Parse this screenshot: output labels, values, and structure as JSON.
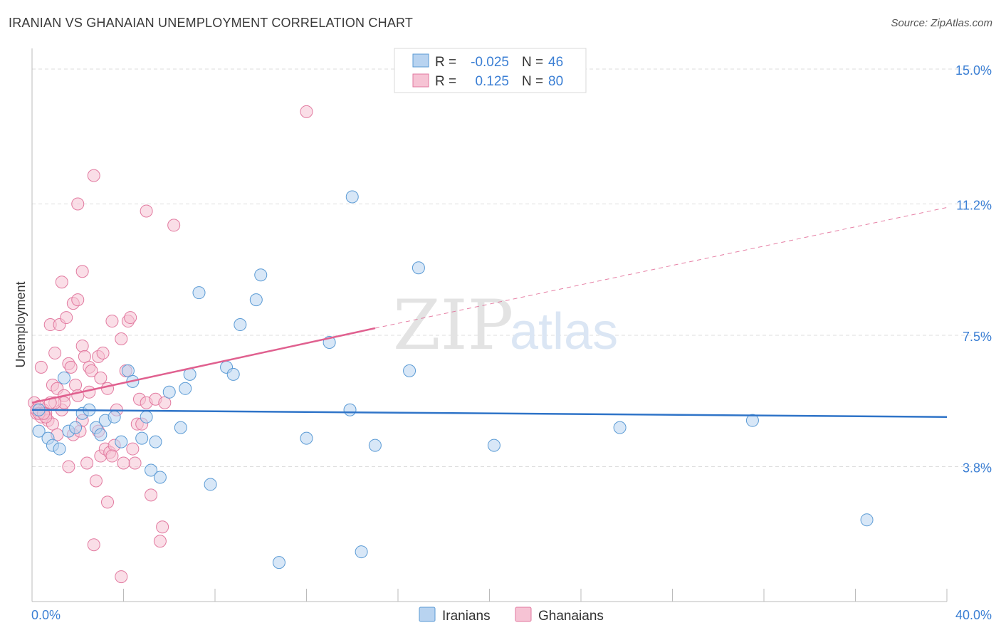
{
  "title": "IRANIAN VS GHANAIAN UNEMPLOYMENT CORRELATION CHART",
  "source": "Source: ZipAtlas.com",
  "watermark": {
    "zip": "ZIP",
    "atlas": "atlas"
  },
  "colors": {
    "blue": "#5b9bd5",
    "blue_fill": "#b8d3f0",
    "blue_line": "#2f74c8",
    "pink": "#e27aa0",
    "pink_fill": "#f6c3d4",
    "pink_line": "#e0608f",
    "tick_text": "#3b7fd4",
    "grid": "#dddddd"
  },
  "stats_box": {
    "rows": [
      {
        "r_label": "R =",
        "r_value": "-0.025",
        "n_label": "N =",
        "n_value": "46"
      },
      {
        "r_label": "R =",
        "r_value": "0.125",
        "n_label": "N =",
        "n_value": "80"
      }
    ]
  },
  "chart_data": {
    "type": "scatter",
    "title": "IRANIAN VS GHANAIAN UNEMPLOYMENT CORRELATION CHART",
    "xlabel": "",
    "ylabel": "Unemployment",
    "xlim": [
      0,
      40
    ],
    "ylim": [
      0,
      15
    ],
    "x_tick_labels": [
      "0.0%",
      "40.0%"
    ],
    "y_ticks": [
      {
        "value": 3.8,
        "label": "3.8%"
      },
      {
        "value": 7.5,
        "label": "7.5%"
      },
      {
        "value": 11.2,
        "label": "11.2%"
      },
      {
        "value": 15.0,
        "label": "15.0%"
      }
    ],
    "legend": [
      "Iranians",
      "Ghanaians"
    ],
    "series": [
      {
        "name": "Iranians",
        "points": [
          [
            0.3,
            4.8
          ],
          [
            0.7,
            4.6
          ],
          [
            0.9,
            4.4
          ],
          [
            1.2,
            4.3
          ],
          [
            1.4,
            6.3
          ],
          [
            1.6,
            4.8
          ],
          [
            1.9,
            4.9
          ],
          [
            2.2,
            5.3
          ],
          [
            2.5,
            5.4
          ],
          [
            2.8,
            4.9
          ],
          [
            3.0,
            4.7
          ],
          [
            3.2,
            5.1
          ],
          [
            3.6,
            5.2
          ],
          [
            3.9,
            4.5
          ],
          [
            4.2,
            6.5
          ],
          [
            4.4,
            6.2
          ],
          [
            4.8,
            4.6
          ],
          [
            5.0,
            5.2
          ],
          [
            5.2,
            3.7
          ],
          [
            5.4,
            4.5
          ],
          [
            5.6,
            3.5
          ],
          [
            6.0,
            5.9
          ],
          [
            6.5,
            4.9
          ],
          [
            6.7,
            6.0
          ],
          [
            6.9,
            6.4
          ],
          [
            7.3,
            8.7
          ],
          [
            7.8,
            3.3
          ],
          [
            8.5,
            6.6
          ],
          [
            8.8,
            6.4
          ],
          [
            9.1,
            7.8
          ],
          [
            9.8,
            8.5
          ],
          [
            10.0,
            9.2
          ],
          [
            10.8,
            1.1
          ],
          [
            12.0,
            4.6
          ],
          [
            13.0,
            7.3
          ],
          [
            13.9,
            5.4
          ],
          [
            14.0,
            11.4
          ],
          [
            14.4,
            1.4
          ],
          [
            15.0,
            4.4
          ],
          [
            16.5,
            6.5
          ],
          [
            16.9,
            9.4
          ],
          [
            20.2,
            4.4
          ],
          [
            25.7,
            4.9
          ],
          [
            31.5,
            5.1
          ],
          [
            36.5,
            2.3
          ],
          [
            0.3,
            5.4
          ]
        ]
      },
      {
        "name": "Ghanaians",
        "points": [
          [
            0.1,
            5.6
          ],
          [
            0.2,
            5.3
          ],
          [
            0.3,
            5.5
          ],
          [
            0.4,
            5.2
          ],
          [
            0.4,
            6.6
          ],
          [
            0.5,
            5.4
          ],
          [
            0.6,
            5.3
          ],
          [
            0.7,
            5.1
          ],
          [
            0.8,
            7.8
          ],
          [
            0.9,
            6.1
          ],
          [
            0.9,
            5.0
          ],
          [
            1.0,
            7.0
          ],
          [
            1.1,
            6.0
          ],
          [
            1.1,
            4.7
          ],
          [
            1.2,
            7.8
          ],
          [
            1.3,
            9.0
          ],
          [
            1.3,
            5.4
          ],
          [
            1.4,
            5.8
          ],
          [
            1.5,
            8.0
          ],
          [
            1.6,
            6.7
          ],
          [
            1.6,
            3.8
          ],
          [
            1.7,
            6.6
          ],
          [
            1.8,
            4.7
          ],
          [
            1.8,
            8.4
          ],
          [
            1.9,
            6.1
          ],
          [
            2.0,
            5.8
          ],
          [
            2.0,
            8.5
          ],
          [
            2.0,
            11.2
          ],
          [
            2.1,
            4.8
          ],
          [
            2.2,
            9.3
          ],
          [
            2.2,
            7.2
          ],
          [
            2.3,
            6.9
          ],
          [
            2.4,
            3.9
          ],
          [
            2.5,
            6.6
          ],
          [
            2.5,
            5.9
          ],
          [
            2.6,
            6.5
          ],
          [
            2.7,
            1.6
          ],
          [
            2.7,
            12.0
          ],
          [
            2.8,
            3.4
          ],
          [
            2.9,
            6.9
          ],
          [
            3.0,
            4.1
          ],
          [
            3.0,
            6.3
          ],
          [
            3.1,
            7.0
          ],
          [
            3.2,
            4.3
          ],
          [
            3.3,
            6.0
          ],
          [
            3.3,
            2.8
          ],
          [
            3.4,
            4.2
          ],
          [
            3.5,
            7.9
          ],
          [
            3.6,
            4.4
          ],
          [
            3.7,
            5.4
          ],
          [
            3.9,
            0.7
          ],
          [
            3.9,
            7.4
          ],
          [
            4.1,
            6.5
          ],
          [
            4.2,
            7.9
          ],
          [
            4.3,
            8.0
          ],
          [
            4.4,
            4.3
          ],
          [
            4.5,
            3.9
          ],
          [
            4.6,
            5.0
          ],
          [
            4.7,
            5.7
          ],
          [
            4.8,
            5.0
          ],
          [
            5.0,
            5.6
          ],
          [
            5.0,
            11.0
          ],
          [
            5.2,
            3.0
          ],
          [
            5.4,
            5.7
          ],
          [
            5.6,
            1.7
          ],
          [
            5.7,
            2.1
          ],
          [
            5.8,
            5.6
          ],
          [
            6.2,
            10.6
          ],
          [
            12.0,
            13.8
          ],
          [
            0.2,
            5.4
          ],
          [
            0.6,
            5.2
          ],
          [
            1.4,
            5.6
          ],
          [
            2.9,
            4.8
          ],
          [
            3.5,
            4.1
          ],
          [
            4.0,
            3.9
          ],
          [
            0.3,
            5.3
          ],
          [
            0.5,
            5.3
          ],
          [
            1.0,
            5.6
          ],
          [
            2.2,
            5.1
          ],
          [
            0.8,
            5.6
          ]
        ]
      }
    ],
    "trend_lines": [
      {
        "series": "Iranians",
        "x": [
          0,
          40
        ],
        "y": [
          5.4,
          5.2
        ],
        "style": "solid"
      },
      {
        "series": "Ghanaians",
        "x": [
          0,
          15
        ],
        "y": [
          5.6,
          7.7
        ],
        "style": "solid"
      },
      {
        "series": "Ghanaians",
        "x": [
          15,
          40
        ],
        "y": [
          7.7,
          11.1
        ],
        "style": "dashed"
      }
    ]
  }
}
